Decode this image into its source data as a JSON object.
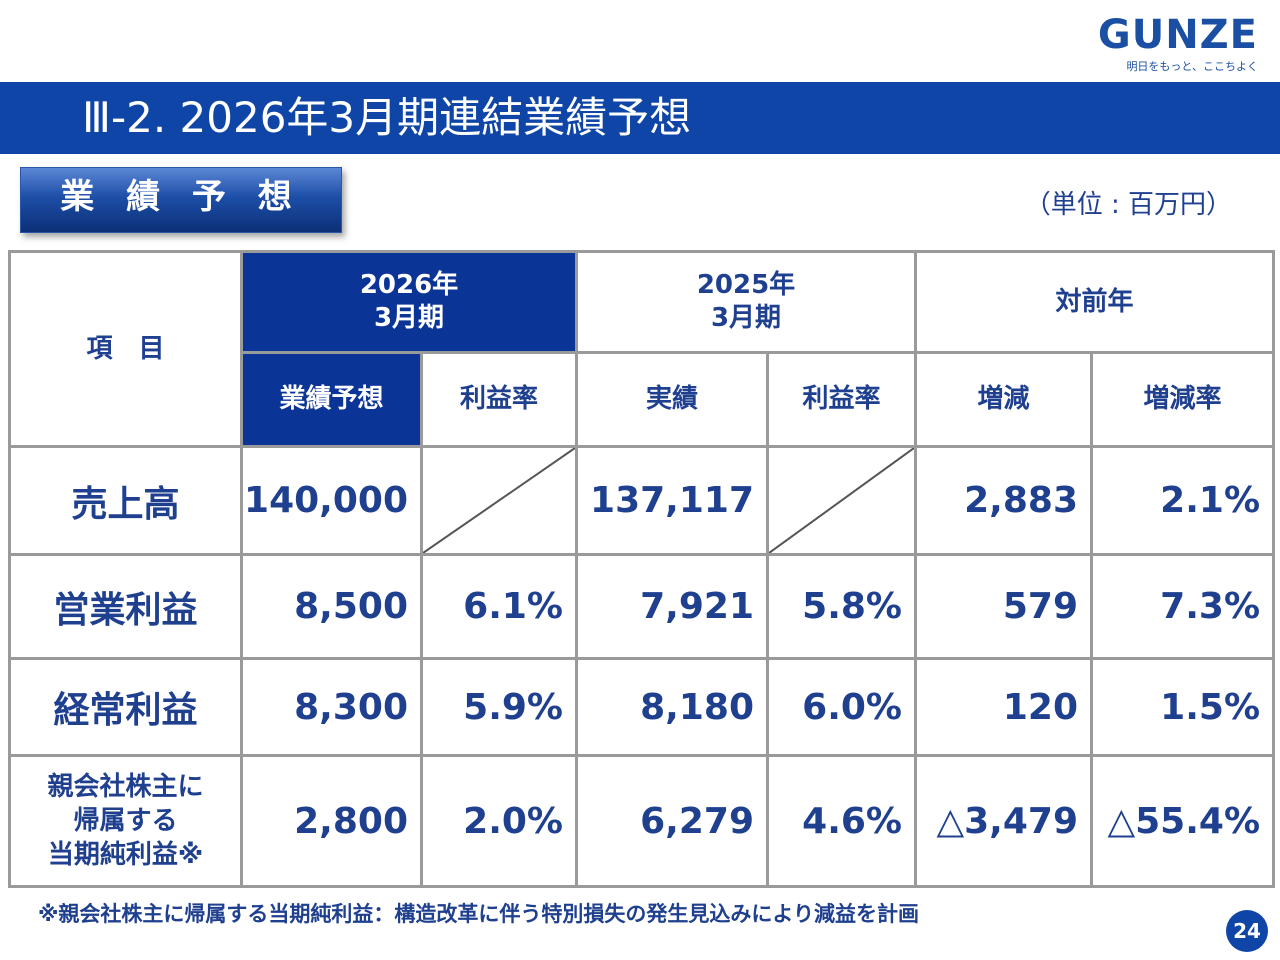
{
  "brand": {
    "logo": "GUNZE",
    "tagline": "明日をもっと、ここちよく"
  },
  "title": "Ⅲ-2. 2026年3月期連結業績予想",
  "section": "業 績 予 想",
  "unit": "（単位 : 百万円）",
  "table": {
    "item_header": "項　目",
    "groups": {
      "current": [
        "2026年",
        "3月期"
      ],
      "previous": [
        "2025年",
        "3月期"
      ],
      "change": "対前年"
    },
    "subheaders": {
      "forecast": "業績予想",
      "margin1": "利益率",
      "actual": "実績",
      "margin2": "利益率",
      "diff": "増減",
      "rate": "増減率"
    },
    "rows": [
      {
        "label": "売上高",
        "forecast": "140,000",
        "margin1": "",
        "actual": "137,117",
        "margin2": "",
        "diff": "2,883",
        "rate": "2.1%"
      },
      {
        "label": "営業利益",
        "forecast": "8,500",
        "margin1": "6.1%",
        "actual": "7,921",
        "margin2": "5.8%",
        "diff": "579",
        "rate": "7.3%"
      },
      {
        "label": "経常利益",
        "forecast": "8,300",
        "margin1": "5.9%",
        "actual": "8,180",
        "margin2": "6.0%",
        "diff": "120",
        "rate": "1.5%"
      },
      {
        "label_lines": [
          "親会社株主に",
          "帰属する",
          "当期純利益※"
        ],
        "forecast": "2,800",
        "margin1": "2.0%",
        "actual": "6,279",
        "margin2": "4.6%",
        "diff": "△3,479",
        "rate": "△55.4%"
      }
    ]
  },
  "footnote": "※親会社株主に帰属する当期純利益：構造改革に伴う特別損失の発生見込みにより減益を計画",
  "page_number": "24",
  "colors": {
    "primary": "#0e45a7",
    "header_dark": "#0b3497",
    "text": "#1f3f8f",
    "border": "#9a9a9a"
  }
}
